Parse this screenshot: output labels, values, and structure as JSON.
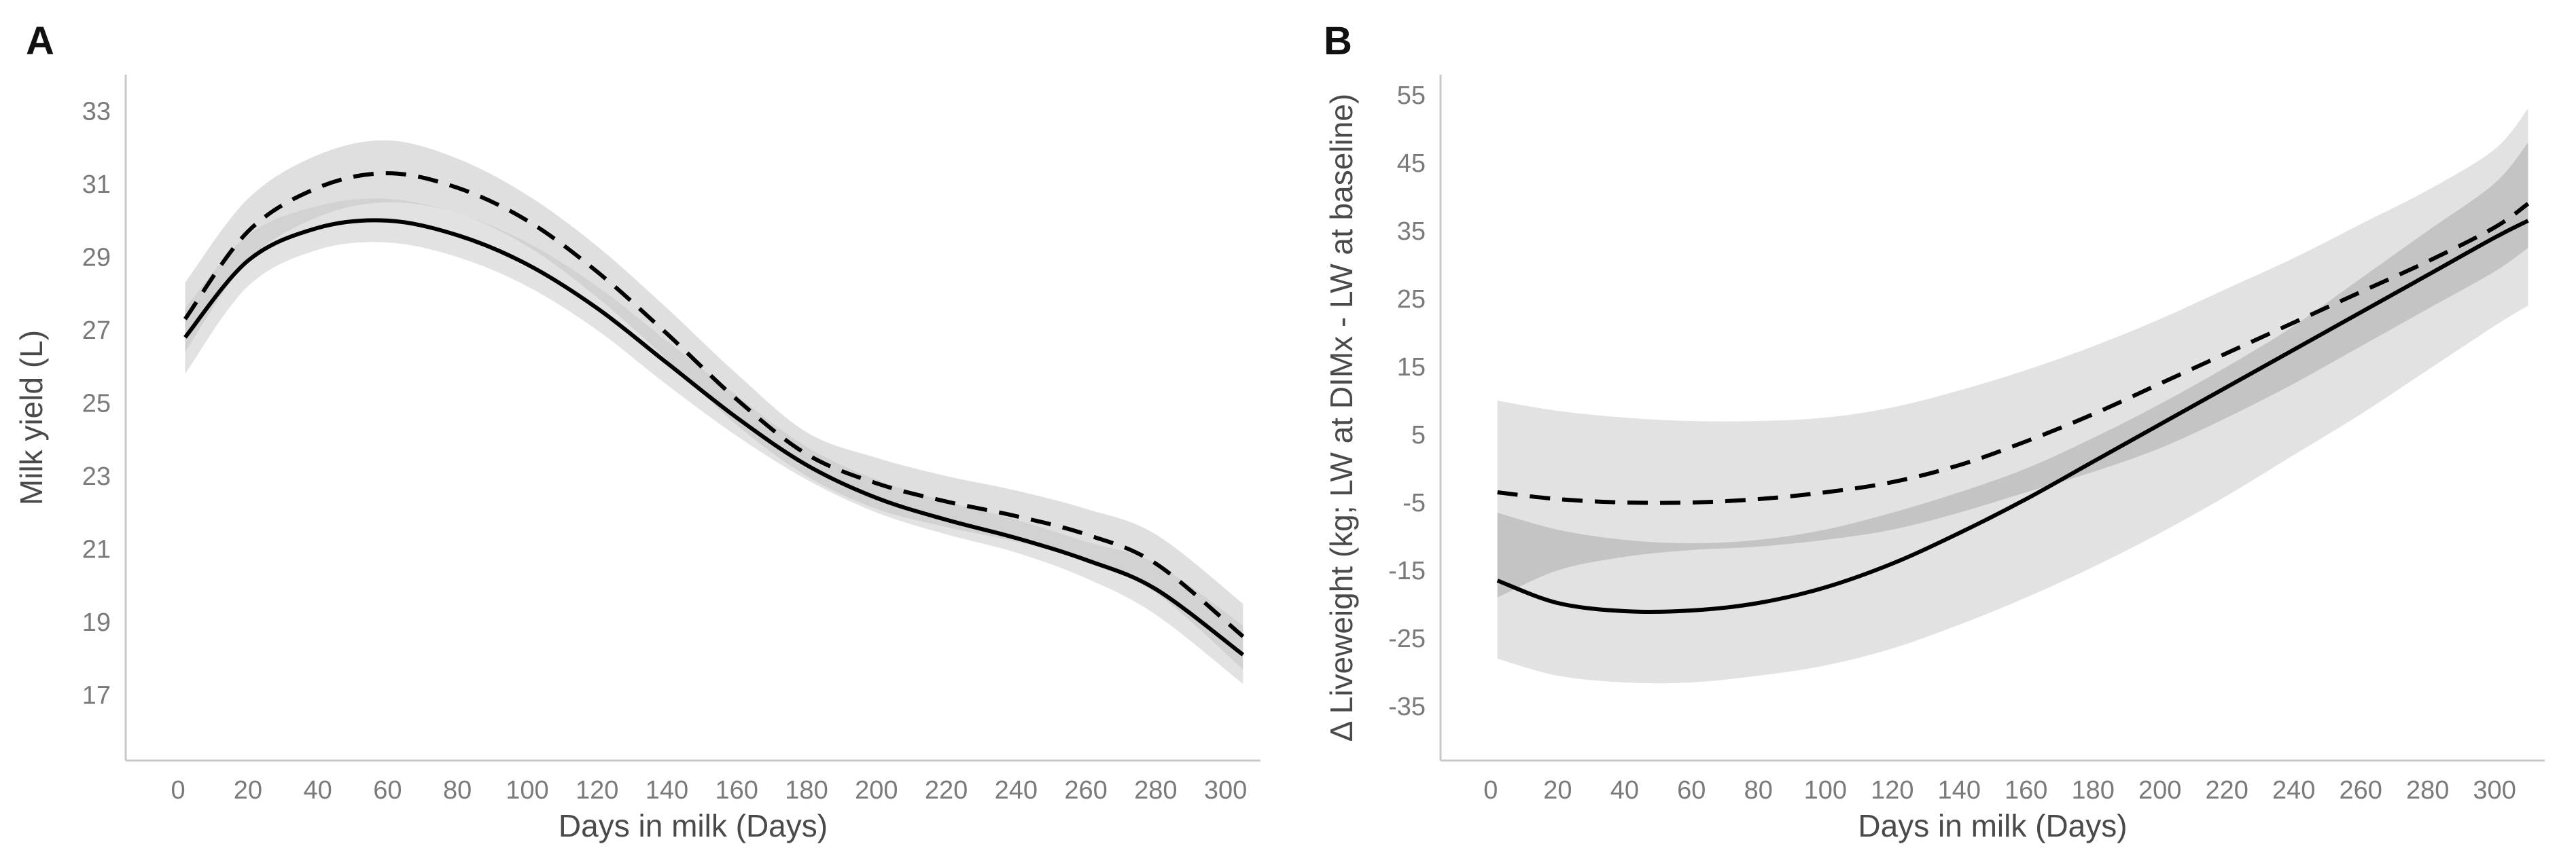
{
  "chart_data": [
    {
      "panel_label": "A",
      "type": "line",
      "title": "",
      "xlabel": "Days in milk (Days)",
      "ylabel": "Milk yield (L)",
      "xlim": [
        -15,
        310
      ],
      "ylim": [
        15.2,
        34
      ],
      "xticks": [
        0,
        20,
        40,
        60,
        80,
        100,
        120,
        140,
        160,
        180,
        200,
        220,
        240,
        260,
        280,
        300
      ],
      "xtick_labels": [
        "0",
        "20",
        "40",
        "60",
        "80",
        "100",
        "120",
        "140",
        "160",
        "180",
        "200",
        "220",
        "240",
        "260",
        "280",
        "300"
      ],
      "yticks": [
        17,
        19,
        21,
        23,
        25,
        27,
        29,
        31,
        33
      ],
      "ytick_labels": [
        "17",
        "19",
        "21",
        "23",
        "25",
        "27",
        "29",
        "31",
        "33"
      ],
      "grid": false,
      "legend": "none",
      "x": [
        2,
        20,
        40,
        60,
        80,
        100,
        120,
        140,
        160,
        180,
        200,
        220,
        240,
        260,
        280,
        305
      ],
      "series": [
        {
          "style": "solid",
          "color": "#000000",
          "values": [
            26.8,
            28.9,
            29.8,
            30.0,
            29.6,
            28.8,
            27.6,
            26.1,
            24.6,
            23.3,
            22.4,
            21.8,
            21.3,
            20.7,
            19.9,
            18.1
          ],
          "band_lower": [
            25.8,
            28.2,
            29.2,
            29.4,
            29.0,
            28.2,
            27.0,
            25.5,
            24.1,
            22.9,
            22.0,
            21.4,
            20.9,
            20.2,
            19.2,
            17.3
          ],
          "band_upper": [
            27.6,
            29.6,
            30.4,
            30.6,
            30.2,
            29.4,
            28.2,
            26.7,
            25.2,
            23.8,
            22.9,
            22.3,
            21.8,
            21.2,
            20.6,
            18.9
          ]
        },
        {
          "style": "dashed",
          "color": "#000000",
          "values": [
            27.3,
            29.7,
            30.9,
            31.3,
            30.9,
            30.0,
            28.6,
            26.9,
            25.1,
            23.6,
            22.8,
            22.3,
            21.9,
            21.4,
            20.6,
            18.6
          ],
          "band_lower": [
            26.4,
            28.9,
            30.1,
            30.5,
            30.2,
            29.3,
            27.9,
            26.2,
            24.4,
            23.0,
            22.1,
            21.6,
            21.2,
            20.7,
            19.8,
            17.7
          ],
          "band_upper": [
            28.3,
            30.6,
            31.8,
            32.2,
            31.7,
            30.7,
            29.3,
            27.6,
            25.8,
            24.2,
            23.5,
            23.0,
            22.6,
            22.1,
            21.4,
            19.5
          ]
        }
      ]
    },
    {
      "panel_label": "B",
      "type": "line",
      "title": "",
      "xlabel": "Days in milk (Days)",
      "ylabel": "Δ Liveweight (kg; LW at DIMx - LW at baseline)",
      "xlim": [
        -15,
        315
      ],
      "ylim": [
        -43,
        58
      ],
      "xticks": [
        0,
        20,
        40,
        60,
        80,
        100,
        120,
        140,
        160,
        180,
        200,
        220,
        240,
        260,
        280,
        300
      ],
      "xtick_labels": [
        "0",
        "20",
        "40",
        "60",
        "80",
        "100",
        "120",
        "140",
        "160",
        "180",
        "200",
        "220",
        "240",
        "260",
        "280",
        "300"
      ],
      "yticks": [
        -35,
        -25,
        -15,
        -5,
        5,
        15,
        25,
        35,
        45,
        55
      ],
      "ytick_labels": [
        "-35",
        "-25",
        "-15",
        "-5",
        "5",
        "15",
        "25",
        "35",
        "45",
        "55"
      ],
      "grid": false,
      "legend": "none",
      "x": [
        2,
        20,
        40,
        60,
        80,
        100,
        120,
        140,
        160,
        180,
        200,
        220,
        240,
        260,
        280,
        300,
        310
      ],
      "series": [
        {
          "style": "solid",
          "color": "#000000",
          "values": [
            -16.5,
            -19.8,
            -21.0,
            -20.9,
            -19.8,
            -17.5,
            -14.0,
            -9.5,
            -4.5,
            1.0,
            6.5,
            12.0,
            17.5,
            23.0,
            28.5,
            34.0,
            36.5
          ]
        },
        {
          "style": "dashed",
          "color": "#000000",
          "values": [
            -3.5,
            -4.5,
            -5.0,
            -5.0,
            -4.5,
            -3.5,
            -2.0,
            0.5,
            4.0,
            8.0,
            12.5,
            17.0,
            21.5,
            26.0,
            30.5,
            35.5,
            39.0
          ]
        }
      ],
      "bands": [
        {
          "shade": "light",
          "lower": [
            -28.0,
            -30.5,
            -31.5,
            -31.5,
            -30.5,
            -29.0,
            -26.5,
            -23.0,
            -19.0,
            -14.5,
            -9.5,
            -4.0,
            2.0,
            8.0,
            14.5,
            21.0,
            24.0
          ],
          "upper": [
            10.0,
            8.5,
            7.5,
            7.0,
            7.0,
            7.5,
            9.0,
            11.5,
            14.5,
            18.0,
            22.0,
            26.5,
            31.0,
            36.0,
            41.0,
            47.0,
            53.0
          ]
        },
        {
          "shade": "dark",
          "lower": [
            -19.0,
            -15.0,
            -13.0,
            -12.0,
            -11.5,
            -10.5,
            -9.0,
            -6.5,
            -3.5,
            -0.5,
            3.0,
            7.5,
            12.5,
            18.0,
            23.5,
            29.0,
            32.5
          ],
          "upper": [
            -6.5,
            -9.0,
            -10.5,
            -11.0,
            -10.5,
            -9.0,
            -6.5,
            -3.5,
            0.0,
            4.5,
            9.5,
            15.0,
            21.0,
            28.0,
            35.0,
            42.0,
            48.0
          ]
        }
      ]
    }
  ],
  "colors": {
    "band_light": "#e2e2e2",
    "band_dark": "#c4c4c4",
    "line": "#000000",
    "axis": "#c8c8c8",
    "tick_text": "#7a7a7a"
  }
}
